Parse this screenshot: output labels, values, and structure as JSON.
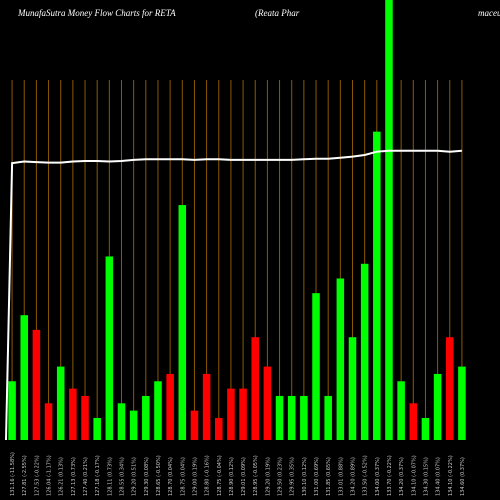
{
  "title": {
    "left": "MunafaSutra  Money Flow  Charts for RETA",
    "right": "(Reata  Phar",
    "tail": "maceu"
  },
  "chart_data": {
    "type": "bar",
    "title": "MunafaSutra Money Flow Charts for RETA",
    "categories": [
      "131.16 (-11.58%)",
      "127.81 (-2.55%)",
      "127.53 (-0.22%)",
      "126.04 (-1.17%)",
      "126.21 (0.13%)",
      "127.13 (0.73%)",
      "127.40 (0.21%)",
      "127.18 (-0.17%)",
      "128.11 (0.73%)",
      "128.55 (0.34%)",
      "129.20 (0.51%)",
      "129.30 (0.08%)",
      "128.65 (-0.50%)",
      "128.70 (0.04%)",
      "128.75 (0.04%)",
      "129.00 (0.19%)",
      "128.80 (-0.16%)",
      "128.75 (-0.04%)",
      "128.90 (0.12%)",
      "129.01 (0.09%)",
      "128.95 (-0.05%)",
      "129.20 (0.19%)",
      "129.50 (0.23%)",
      "129.95 (0.35%)",
      "130.10 (0.12%)",
      "131.00 (0.69%)",
      "131.85 (0.65%)",
      "133.01 (0.88%)",
      "134.20 (0.89%)",
      "133.50 (-0.52%)",
      "134.00 (0.37%)",
      "133.70 (-0.22%)",
      "134.20 (0.37%)",
      "134.10 (-0.07%)",
      "134.30 (0.15%)",
      "134.40 (0.07%)",
      "134.10 (-0.22%)",
      "134.60 (0.37%)"
    ],
    "series": [
      {
        "values": [
          8,
          17,
          15,
          5,
          10,
          7,
          6,
          3,
          25,
          5,
          4,
          6,
          8,
          9,
          32,
          4,
          9,
          3,
          7,
          7,
          14,
          10,
          6,
          6,
          6,
          20,
          6,
          22,
          14,
          24,
          42,
          100,
          8,
          5,
          3,
          9,
          14,
          10
        ]
      }
    ],
    "bar_colors": [
      "#00ff00",
      "#00ff00",
      "#ff0000",
      "#ff0000",
      "#00ff00",
      "#ff0000",
      "#ff0000",
      "#00ff00",
      "#00ff00",
      "#00ff00",
      "#00ff00",
      "#00ff00",
      "#00ff00",
      "#ff0000",
      "#00ff00",
      "#ff0000",
      "#ff0000",
      "#ff0000",
      "#ff0000",
      "#ff0000",
      "#ff0000",
      "#ff0000",
      "#00ff00",
      "#00ff00",
      "#00ff00",
      "#00ff00",
      "#00ff00",
      "#00ff00",
      "#00ff00",
      "#00ff00",
      "#00ff00",
      "#00ff00",
      "#00ff00",
      "#ff0000",
      "#00ff00",
      "#00ff00",
      "#ff0000",
      "#00ff00"
    ],
    "price_line": [
      131,
      131.3,
      131.2,
      131.1,
      131.1,
      131.3,
      131.4,
      131.4,
      131.3,
      131.4,
      131.6,
      131.7,
      131.7,
      131.7,
      131.7,
      131.6,
      131.7,
      131.7,
      131.6,
      131.6,
      131.6,
      131.6,
      131.6,
      131.6,
      131.7,
      131.8,
      131.8,
      132.0,
      132.2,
      132.5,
      133.1,
      133.3,
      133.3,
      133.3,
      133.3,
      133.3,
      133.1,
      133.3
    ],
    "price_range": [
      80,
      150
    ],
    "colors": {
      "up": "#00ff00",
      "down": "#ff0000",
      "grid": "#8a5a00",
      "line": "#ffffff",
      "background": "#000000"
    },
    "grid": true
  }
}
